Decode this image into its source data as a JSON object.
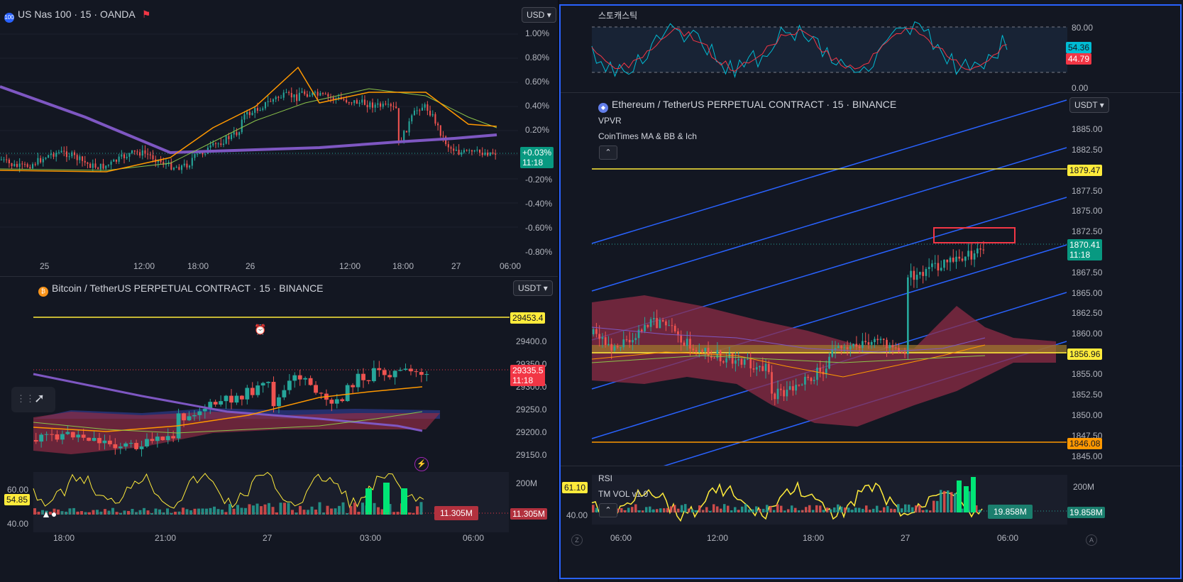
{
  "nas": {
    "title": "US Nas 100 · 15 · OANDA",
    "currency": "USD",
    "icon_text": "100",
    "price_axis": [
      "1.00%",
      "0.80%",
      "0.60%",
      "0.40%",
      "0.20%",
      "-0.20%",
      "-0.40%",
      "-0.60%",
      "-0.80%"
    ],
    "time_axis": [
      "25",
      "12:00",
      "18:00",
      "26",
      "12:00",
      "18:00",
      "27",
      "06:00"
    ],
    "last_change": "+0.03%",
    "countdown": "11:18"
  },
  "btc": {
    "title": "Bitcoin / TetherUS PERPETUAL CONTRACT · 15 · BINANCE",
    "currency": "USDT",
    "price_axis": [
      "29400.0",
      "29350.0",
      "29300.0",
      "29250.0",
      "29200.0",
      "29150.0"
    ],
    "level_yellow": "29453.4",
    "last_price": "29335.5",
    "countdown": "11:18",
    "rsi_values": [
      "60.00",
      "54.85",
      "40.00"
    ],
    "vol_axis": "200M",
    "vol_value": "11.305M",
    "time_axis": [
      "18:00",
      "21:00",
      "27",
      "03:00",
      "06:00"
    ]
  },
  "stoch": {
    "title": "스토캐스틱",
    "axis": [
      "80.00",
      "0.00"
    ],
    "k_value": "54.36",
    "d_value": "44.79"
  },
  "eth": {
    "title": "Ethereum / TetherUS PERPETUAL CONTRACT · 15 · BINANCE",
    "currency": "USDT",
    "indicator1": "VPVR",
    "indicator2": "CoinTimes MA & BB & Ich",
    "price_axis": [
      "1885.00",
      "1882.50",
      "1877.50",
      "1875.00",
      "1872.50",
      "1867.50",
      "1865.00",
      "1862.50",
      "1860.00",
      "1855.00",
      "1852.50",
      "1850.00",
      "1847.50",
      "1845.00"
    ],
    "level_yellow": "1879.47",
    "last_price": "1870.41",
    "countdown": "11:18",
    "level_yellow2": "1856.96",
    "level_orange": "1846.08",
    "rsi_label": "RSI",
    "rsi_value": "61.10",
    "rsi_axis": "40.00",
    "vol_label": "TM VOL v1.0",
    "vol_axis": "200M",
    "vol_value": "19.858M",
    "time_axis": [
      "06:00",
      "12:00",
      "18:00",
      "27",
      "06:00"
    ]
  },
  "colors": {
    "up": "#26a69a",
    "down": "#ef5350",
    "yellow": "#ffeb3b",
    "orange": "#ff9800",
    "purple": "#7e57c2",
    "blue": "#2962ff"
  }
}
